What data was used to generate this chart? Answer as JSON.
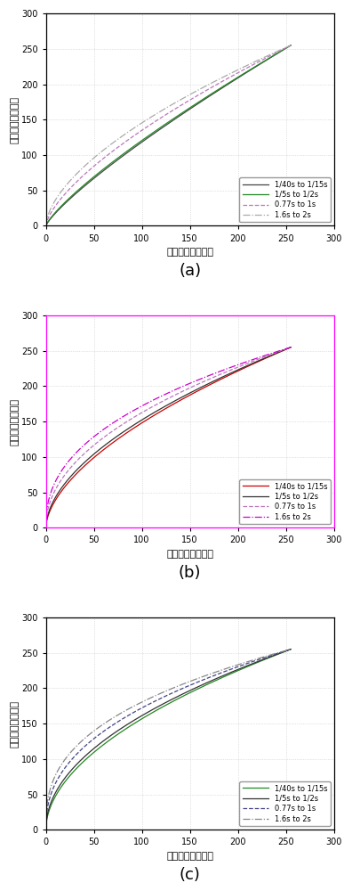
{
  "xlabel": "曝光量较低帧图像",
  "ylabel": "曝光量较高帧图像",
  "xlim": [
    0,
    300
  ],
  "ylim": [
    0,
    300
  ],
  "xticks": [
    0,
    50,
    100,
    150,
    200,
    250,
    300
  ],
  "yticks": [
    0,
    50,
    100,
    150,
    200,
    250,
    300
  ],
  "subplot_labels": [
    "(a)",
    "(b)",
    "(c)"
  ],
  "fig_bg": "#ffffff",
  "axes_bg": "#ffffff",
  "grid_color": "#c8c8c8",
  "subplots": [
    {
      "border_color": "#000000",
      "curves": [
        {
          "label": "1/40s to 1/15s",
          "color": "#444444",
          "linestyle": "solid",
          "linewidth": 0.9,
          "gamma": 0.82
        },
        {
          "label": "1/5s to 1/2s",
          "color": "#228822",
          "linestyle": "solid",
          "linewidth": 0.9,
          "gamma": 0.8
        },
        {
          "label": "0.77s to 1s",
          "color": "#bb77bb",
          "linestyle": "dashed",
          "linewidth": 0.9,
          "gamma": 0.68
        },
        {
          "label": "1.6s to 2s",
          "color": "#aaaaaa",
          "linestyle": "dashdot",
          "linewidth": 0.9,
          "gamma": 0.6
        }
      ]
    },
    {
      "border_color": "#ff00ff",
      "curves": [
        {
          "label": "1/40s to 1/15s",
          "color": "#cc0000",
          "linestyle": "solid",
          "linewidth": 0.9,
          "gamma": 0.58
        },
        {
          "label": "1/5s to 1/2s",
          "color": "#333333",
          "linestyle": "solid",
          "linewidth": 0.9,
          "gamma": 0.55
        },
        {
          "label": "0.77s to 1s",
          "color": "#bb77bb",
          "linestyle": "dashed",
          "linewidth": 0.9,
          "gamma": 0.48
        },
        {
          "label": "1.6s to 2s",
          "color": "#cc00cc",
          "linestyle": "dashdot",
          "linewidth": 0.9,
          "gamma": 0.42
        }
      ]
    },
    {
      "border_color": "#000000",
      "curves": [
        {
          "label": "1/40s to 1/15s",
          "color": "#228822",
          "linestyle": "solid",
          "linewidth": 0.9,
          "gamma": 0.52
        },
        {
          "label": "1/5s to 1/2s",
          "color": "#333333",
          "linestyle": "solid",
          "linewidth": 0.9,
          "gamma": 0.49
        },
        {
          "label": "0.77s to 1s",
          "color": "#444488",
          "linestyle": "dashed",
          "linewidth": 0.9,
          "gamma": 0.42
        },
        {
          "label": "1.6s to 2s",
          "color": "#888888",
          "linestyle": "dashdot",
          "linewidth": 0.9,
          "gamma": 0.37
        }
      ]
    }
  ]
}
